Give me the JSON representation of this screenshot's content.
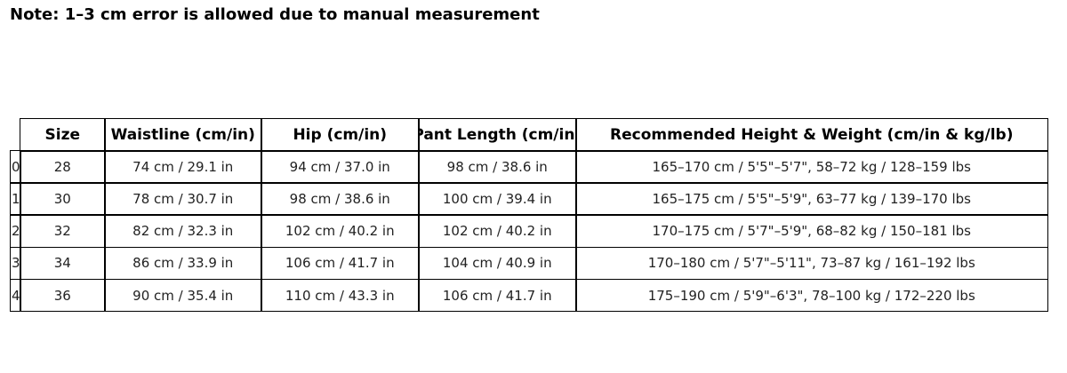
{
  "note": "Note: 1–3 cm error is allowed due to manual measurement",
  "table": {
    "columns": [
      "Size",
      "Waistline (cm/in)",
      "Hip (cm/in)",
      "Pant Length (cm/in)",
      "Recommended Height & Weight (cm/in & kg/lb)"
    ],
    "index": [
      "0",
      "1",
      "2",
      "3",
      "4"
    ],
    "rows": [
      [
        "28",
        "74 cm / 29.1 in",
        "94 cm / 37.0 in",
        "98 cm / 38.6 in",
        "165–170 cm / 5'5\"–5'7\", 58–72 kg / 128–159 lbs"
      ],
      [
        "30",
        "78 cm / 30.7 in",
        "98 cm / 38.6 in",
        "100 cm / 39.4 in",
        "165–175 cm / 5'5\"–5'9\", 63–77 kg / 139–170 lbs"
      ],
      [
        "32",
        "82 cm / 32.3 in",
        "102 cm / 40.2 in",
        "102 cm / 40.2 in",
        "170–175 cm / 5'7\"–5'9\", 68–82 kg / 150–181 lbs"
      ],
      [
        "34",
        "86 cm / 33.9 in",
        "106 cm / 41.7 in",
        "104 cm / 40.9 in",
        "170–180 cm / 5'7\"–5'11\", 73–87 kg / 161–192 lbs"
      ],
      [
        "36",
        "90 cm / 35.4 in",
        "110 cm / 43.3 in",
        "106 cm / 41.7 in",
        "175–190 cm / 5'9\"–6'3\", 78–100 kg / 172–220 lbs"
      ]
    ]
  }
}
